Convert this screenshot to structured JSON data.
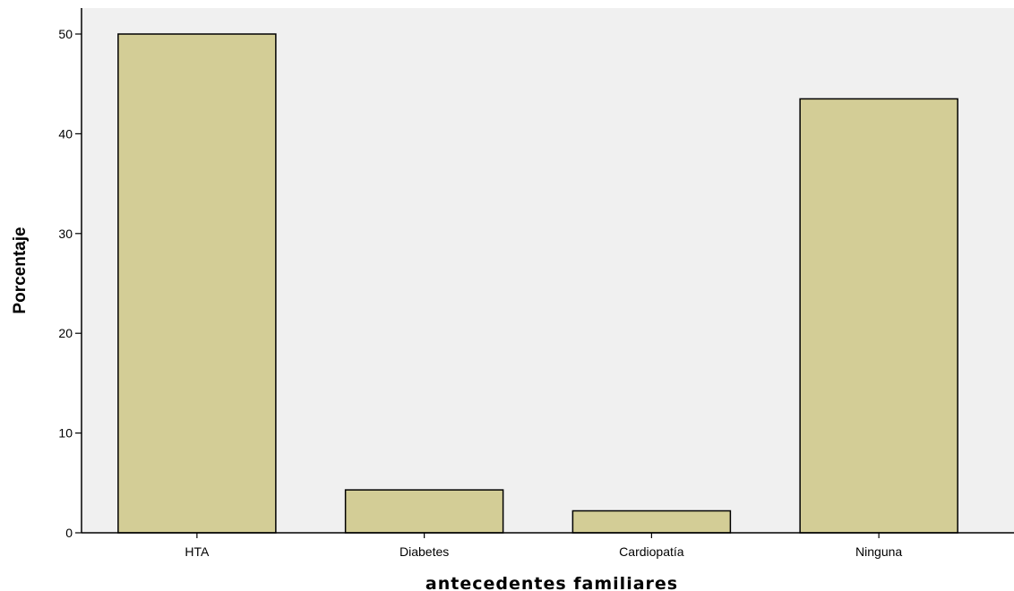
{
  "chart_data": {
    "type": "bar",
    "categories": [
      "HTA",
      "Diabetes",
      "Cardiopatía",
      "Ninguna"
    ],
    "values": [
      50.0,
      4.3,
      2.2,
      43.5
    ],
    "xlabel": "antecedentes familiares",
    "ylabel": "Porcentaje",
    "ylim": [
      0,
      50
    ],
    "yticks": [
      0,
      10,
      20,
      30,
      40,
      50
    ],
    "grid": false,
    "colors": {
      "bar_fill": "#d3cd96",
      "bar_stroke": "#000000",
      "plot_background": "#f0f0f0"
    }
  }
}
